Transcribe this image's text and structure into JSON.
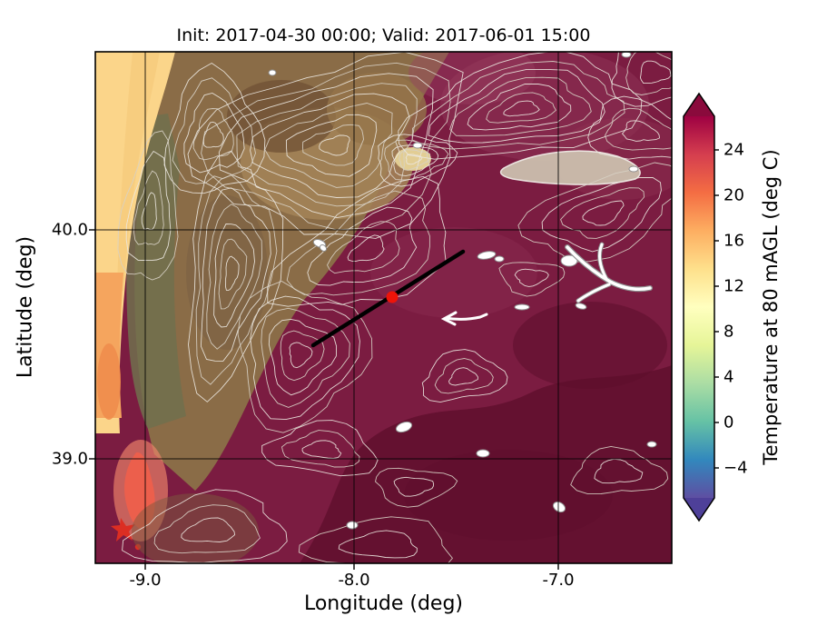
{
  "figure": {
    "init_time": "2017-04-30 00:00",
    "valid_time": "2017-06-01 15:00"
  },
  "chart_data": {
    "type": "heatmap",
    "subtype": "filled contour temperature map with terrain elevation contours",
    "title": "Init: 2017-04-30 00:00; Valid: 2017-06-01 15:00",
    "xlabel": "Longitude (deg)",
    "ylabel": "Latitude (deg)",
    "xlim": [
      -9.25,
      -6.45
    ],
    "ylim": [
      38.55,
      40.78
    ],
    "xticks": [
      "-9.0",
      "-8.0",
      "-7.0"
    ],
    "xtick_values": [
      -9.0,
      -8.0,
      -7.0
    ],
    "yticks": [
      "40.0",
      "39.0"
    ],
    "ytick_values": [
      40.0,
      39.0
    ],
    "grid": true,
    "colorbar": {
      "label": "Temperature at 80 mAGL (deg C)",
      "ticks": [
        "24",
        "20",
        "16",
        "12",
        "8",
        "4",
        "0",
        "−4"
      ],
      "tick_values": [
        24,
        20,
        16,
        12,
        8,
        4,
        0,
        -4
      ],
      "extend": "both",
      "colormap": "Spectral reversed",
      "colormap_colors": [
        "#5e4fa2",
        "#3288bd",
        "#66c2a5",
        "#abdda4",
        "#e6f598",
        "#ffffbf",
        "#fee08b",
        "#fdae61",
        "#f46d43",
        "#d53e4f",
        "#9e0142"
      ]
    },
    "field_summary": {
      "dominant_inland_temp_degC": 26,
      "coastal_band_temp_degC": 12,
      "coastal_warm_patch_degC": 16,
      "hot_spot_bottom_left_degC": 20
    },
    "overlays": {
      "transect_line": {
        "lon_start": -8.2,
        "lat_start": 39.5,
        "lon_end": -7.48,
        "lat_end": 39.9,
        "color": "#000000"
      },
      "marker": {
        "lon": -7.83,
        "lat": 39.71,
        "color": "#ee1409"
      }
    }
  }
}
